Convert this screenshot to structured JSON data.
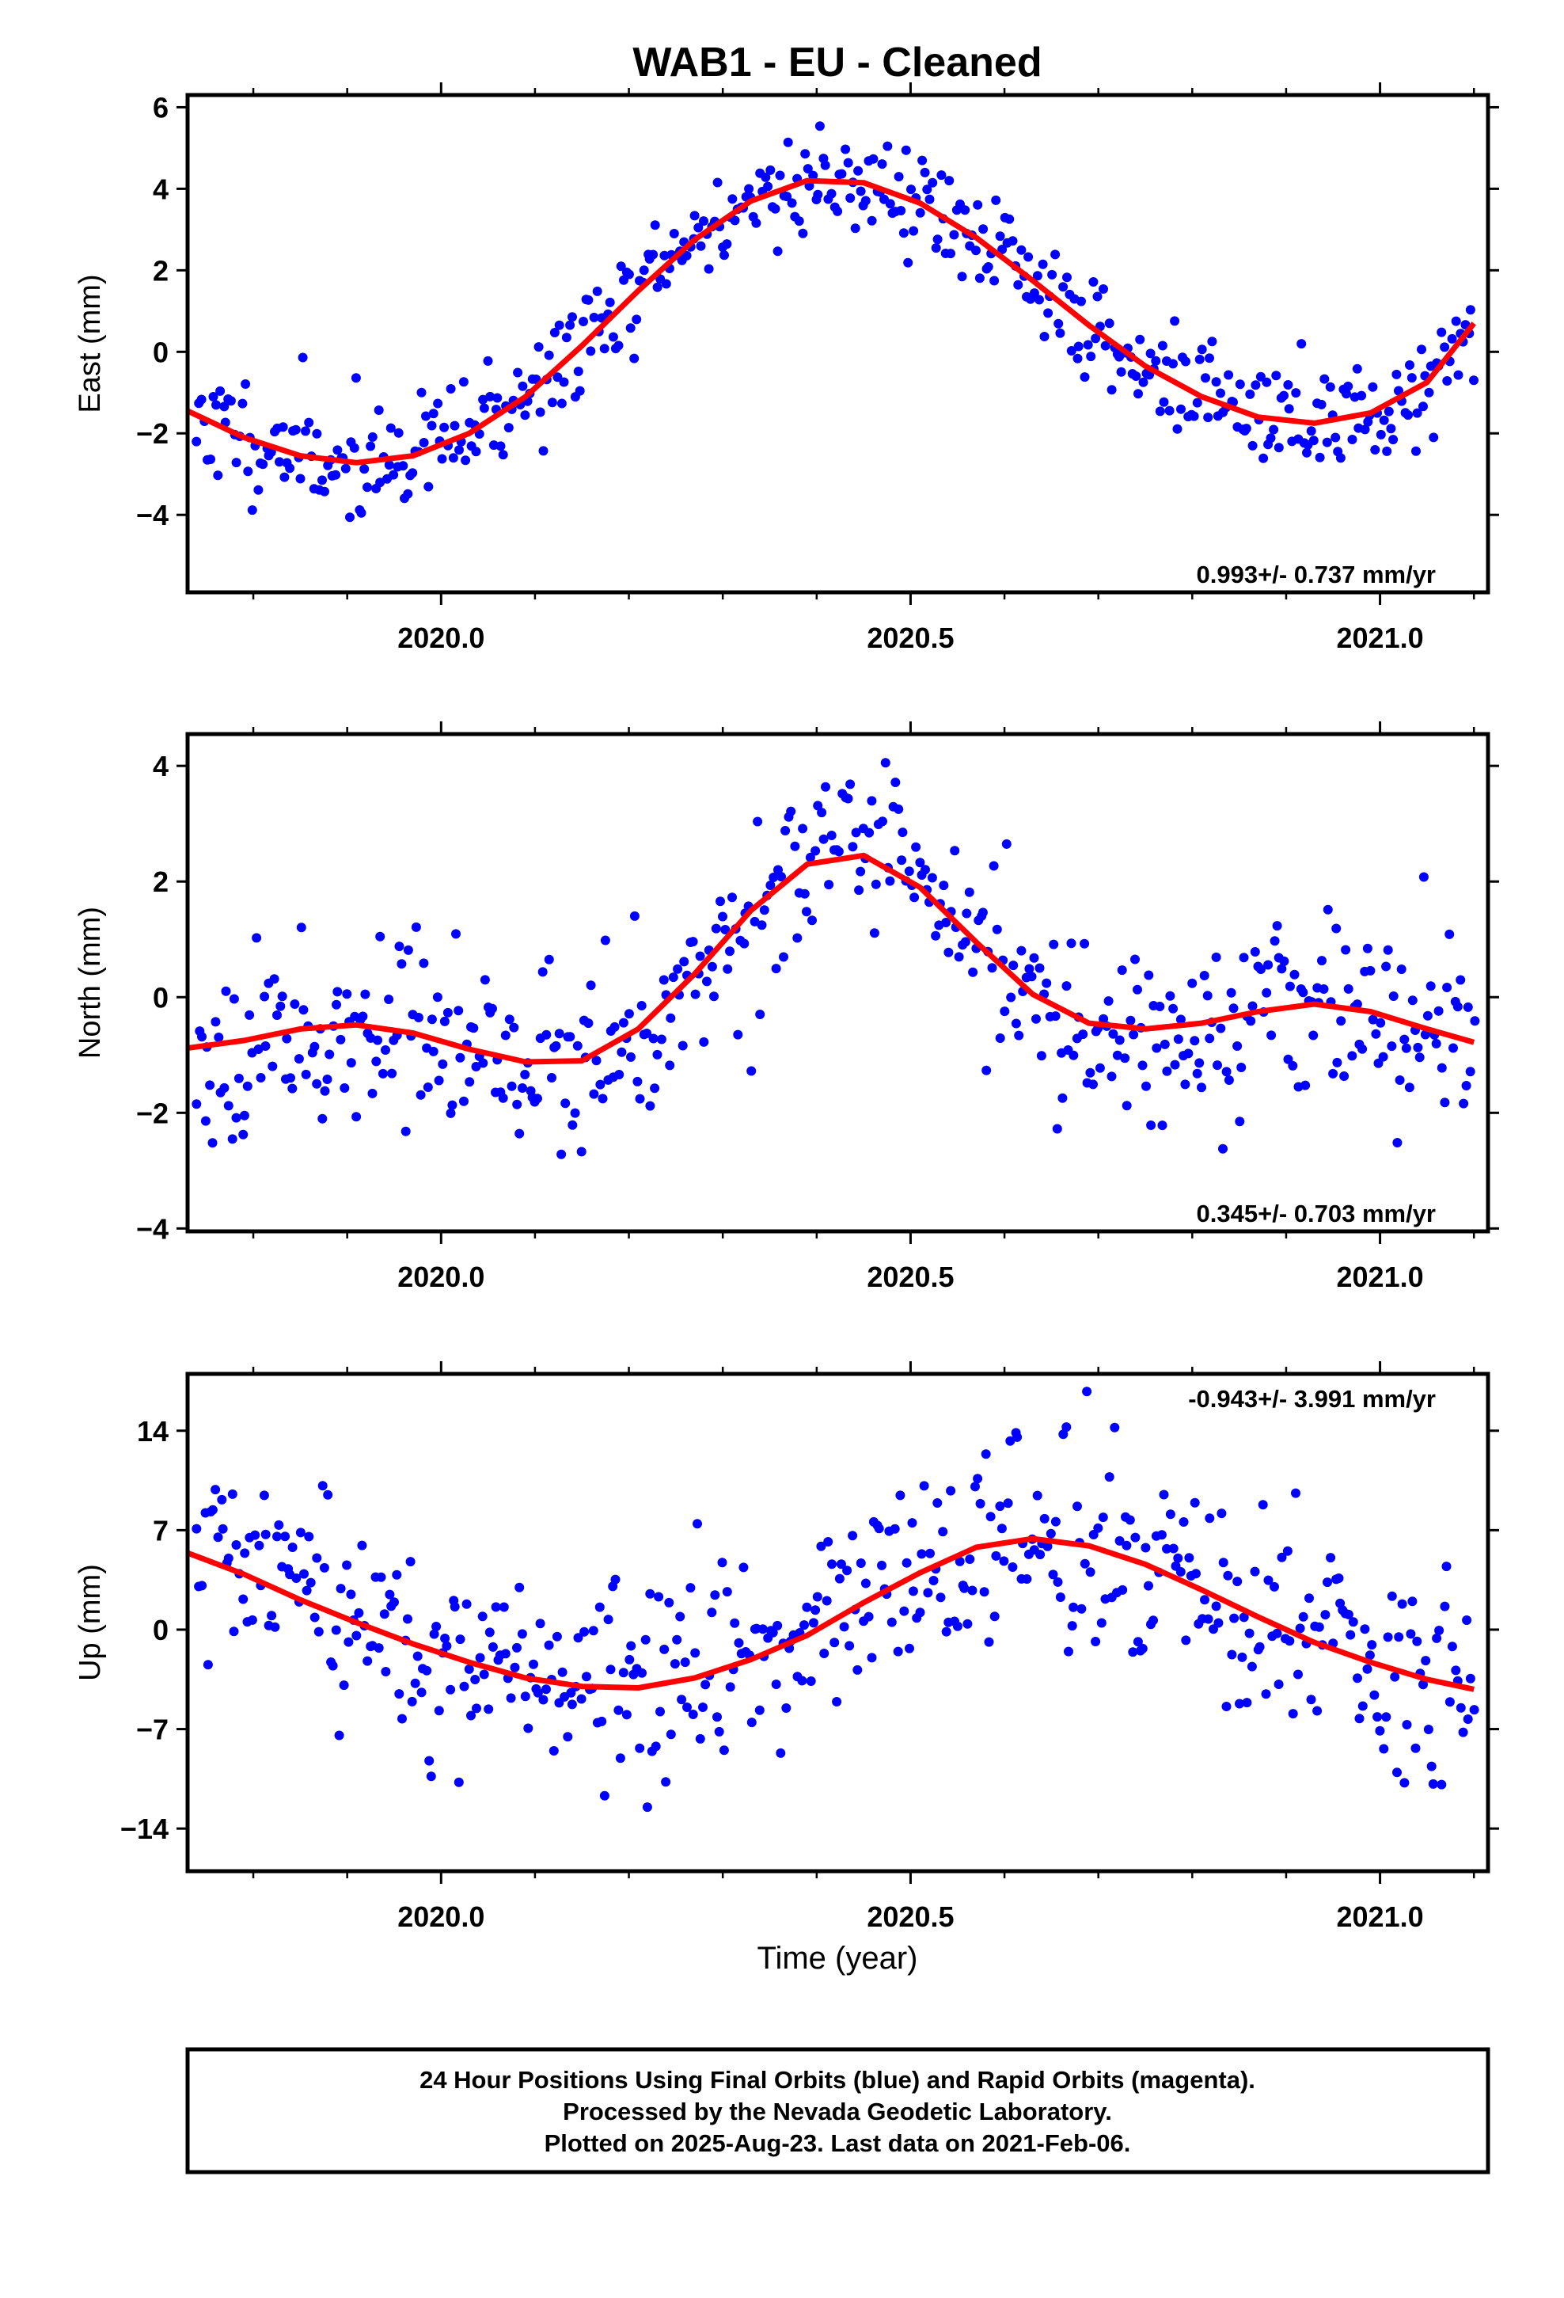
{
  "title": "WAB1  - EU - Cleaned",
  "colors": {
    "points": "#0000ff",
    "fit": "#ff0000",
    "frame": "#000000"
  },
  "chart_data": [
    {
      "type": "scatter",
      "ylabel": "East (mm)",
      "xlabel": "",
      "xlim": [
        2019.73,
        2021.115
      ],
      "ylim": [
        -5.9,
        6.3
      ],
      "xticks": [
        "2020.0",
        "2020.5",
        "2021.0"
      ],
      "yticks": [
        "−4",
        "−2",
        "0",
        "2",
        "4",
        "6"
      ],
      "rate": "0.993+/- 0.737 mm/yr",
      "rate_position": "bottom-right",
      "fit": {
        "x": [
          2019.73,
          2019.79,
          2019.85,
          2019.91,
          2019.97,
          2020.03,
          2020.09,
          2020.15,
          2020.21,
          2020.27,
          2020.33,
          2020.39,
          2020.45,
          2020.51,
          2020.57,
          2020.63,
          2020.69,
          2020.75,
          2020.81,
          2020.87,
          2020.93,
          2020.99,
          2021.05,
          2021.1
        ],
        "y": [
          -1.45,
          -2.1,
          -2.55,
          -2.72,
          -2.55,
          -2.0,
          -1.1,
          0.15,
          1.5,
          2.75,
          3.7,
          4.2,
          4.15,
          3.65,
          2.8,
          1.75,
          0.65,
          -0.35,
          -1.1,
          -1.6,
          -1.75,
          -1.5,
          -0.75,
          0.7
        ]
      },
      "seed": 11,
      "noise": 0.8,
      "n_points": 480
    },
    {
      "type": "scatter",
      "ylabel": "North (mm)",
      "xlabel": "",
      "xlim": [
        2019.73,
        2021.115
      ],
      "ylim": [
        -4.05,
        4.55
      ],
      "xticks": [
        "2020.0",
        "2020.5",
        "2021.0"
      ],
      "yticks": [
        "−4",
        "−2",
        "0",
        "2",
        "4"
      ],
      "rate": "0.345+/- 0.703 mm/yr",
      "rate_position": "bottom-right",
      "fit": {
        "x": [
          2019.73,
          2019.79,
          2019.85,
          2019.91,
          2019.97,
          2020.03,
          2020.09,
          2020.15,
          2020.21,
          2020.27,
          2020.33,
          2020.39,
          2020.45,
          2020.51,
          2020.57,
          2020.63,
          2020.69,
          2020.75,
          2020.81,
          2020.87,
          2020.93,
          2020.99,
          2021.05,
          2021.1
        ],
        "y": [
          -0.88,
          -0.75,
          -0.55,
          -0.48,
          -0.62,
          -0.9,
          -1.12,
          -1.1,
          -0.55,
          0.4,
          1.5,
          2.3,
          2.45,
          1.9,
          0.95,
          0.05,
          -0.45,
          -0.55,
          -0.45,
          -0.25,
          -0.12,
          -0.25,
          -0.55,
          -0.78
        ]
      },
      "seed": 23,
      "noise": 0.9,
      "n_points": 480
    },
    {
      "type": "scatter",
      "ylabel": "Up (mm)",
      "xlabel": "Time (year)",
      "xlim": [
        2019.73,
        2021.115
      ],
      "ylim": [
        -17,
        18
      ],
      "xticks": [
        "2020.0",
        "2020.5",
        "2021.0"
      ],
      "yticks": [
        "−14",
        "−7",
        "0",
        "7",
        "14"
      ],
      "rate": "-0.943+/- 3.991 mm/yr",
      "rate_position": "top-right",
      "fit": {
        "x": [
          2019.73,
          2019.79,
          2019.85,
          2019.91,
          2019.97,
          2020.03,
          2020.09,
          2020.15,
          2020.21,
          2020.27,
          2020.33,
          2020.39,
          2020.45,
          2020.51,
          2020.57,
          2020.63,
          2020.69,
          2020.75,
          2020.81,
          2020.87,
          2020.93,
          2020.99,
          2021.05,
          2021.1
        ],
        "y": [
          5.4,
          3.9,
          2.1,
          0.5,
          -1.0,
          -2.3,
          -3.4,
          -4.0,
          -4.1,
          -3.4,
          -2.1,
          -0.4,
          1.9,
          4.0,
          5.8,
          6.4,
          5.9,
          4.6,
          2.8,
          0.9,
          -0.9,
          -2.3,
          -3.5,
          -4.2
        ]
      },
      "seed": 37,
      "noise": 4.2,
      "n_points": 480
    }
  ],
  "footer": {
    "lines": [
      "24 Hour Positions Using Final Orbits (blue) and Rapid Orbits (magenta).",
      "Processed by the Nevada Geodetic Laboratory.",
      "Plotted on 2025-Aug-23. Last data on 2021-Feb-06."
    ]
  }
}
